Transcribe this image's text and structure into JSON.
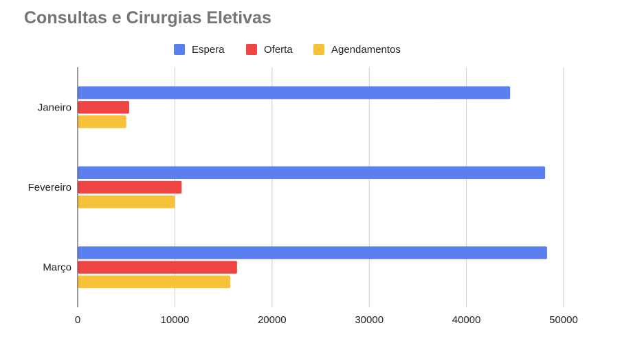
{
  "chart_data": {
    "type": "bar",
    "orientation": "horizontal",
    "title": "Consultas e Cirurgias Eletivas",
    "xlabel": "",
    "ylabel": "",
    "categories": [
      "Janeiro",
      "Fevereiro",
      "Março"
    ],
    "series": [
      {
        "name": "Espera",
        "color": "#5B7FEE",
        "values": [
          44500,
          48100,
          48300
        ]
      },
      {
        "name": "Oferta",
        "color": "#EE4444",
        "values": [
          5300,
          10700,
          16400
        ]
      },
      {
        "name": "Agendamentos",
        "color": "#F8C13A",
        "values": [
          5000,
          10000,
          15700
        ]
      }
    ],
    "xlim": [
      0,
      50000
    ],
    "xticks": [
      "0",
      "10000",
      "20000",
      "30000",
      "40000",
      "50000"
    ],
    "grid": true,
    "legend_position": "top"
  }
}
